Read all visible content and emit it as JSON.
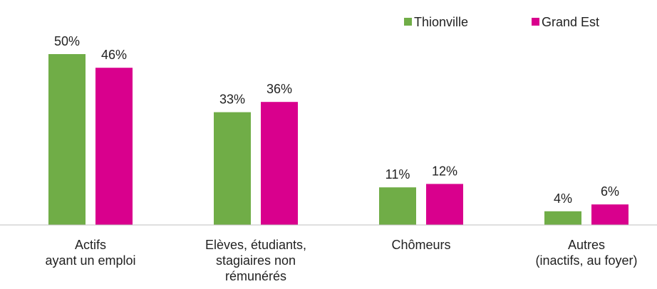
{
  "chart_data": {
    "type": "bar",
    "categories": [
      "Actifs\nayant un emploi",
      "Elèves, étudiants,\nstagiaires non\nrémunérés",
      "Chômeurs",
      "Autres\n(inactifs, au foyer)"
    ],
    "series": [
      {
        "name": "Thionville",
        "color": "#70ad47",
        "values": [
          50,
          33,
          11,
          4
        ],
        "value_labels": [
          "50%",
          "33%",
          "11%",
          "4%"
        ]
      },
      {
        "name": "Grand Est",
        "color": "#d9008d",
        "values": [
          46,
          36,
          12,
          6
        ],
        "value_labels": [
          "46%",
          "36%",
          "12%",
          "6%"
        ]
      }
    ],
    "ylim": [
      0,
      60
    ]
  }
}
